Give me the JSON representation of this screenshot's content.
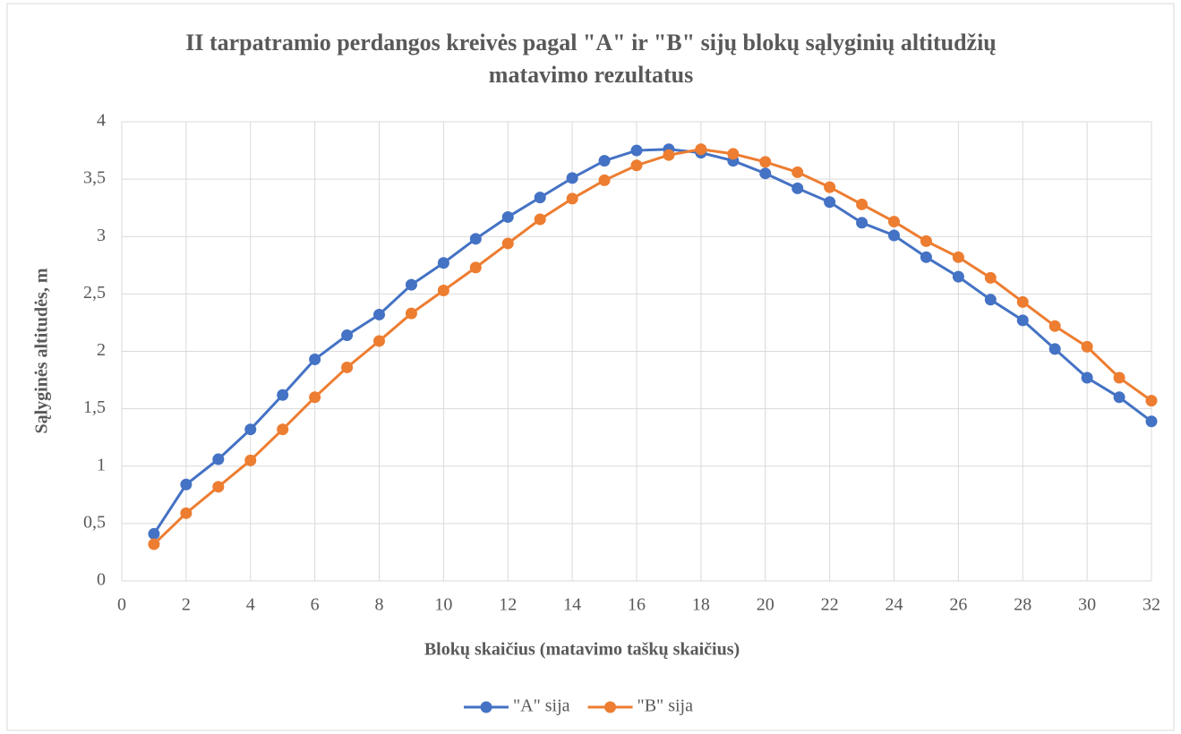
{
  "chart_data": {
    "type": "line",
    "title": "II tarpatramio perdangos kreivės pagal \"A\" ir \"B\" sijų blokų sąlyginių altitudžių matavimo rezultatus",
    "xlabel": "Blokų skaičius (matavimo taškų skaičius)",
    "ylabel": "Sąlyginės altitudės, m",
    "x": [
      1,
      2,
      3,
      4,
      5,
      6,
      7,
      8,
      9,
      10,
      11,
      12,
      13,
      14,
      15,
      16,
      17,
      18,
      19,
      20,
      21,
      22,
      23,
      24,
      25,
      26,
      27,
      28,
      29,
      30,
      31,
      32
    ],
    "series": [
      {
        "name": "\"A\" sija",
        "color": "#4472c4",
        "values": [
          0.41,
          0.84,
          1.06,
          1.32,
          1.62,
          1.93,
          2.14,
          2.32,
          2.58,
          2.77,
          2.98,
          3.17,
          3.34,
          3.51,
          3.66,
          3.75,
          3.76,
          3.73,
          3.66,
          3.55,
          3.42,
          3.3,
          3.12,
          3.01,
          2.82,
          2.65,
          2.45,
          2.27,
          2.02,
          1.77,
          1.6,
          1.39
        ]
      },
      {
        "name": "\"B\" sija",
        "color": "#ed7d31",
        "values": [
          0.32,
          0.59,
          0.82,
          1.05,
          1.32,
          1.6,
          1.86,
          2.09,
          2.33,
          2.53,
          2.73,
          2.94,
          3.15,
          3.33,
          3.49,
          3.62,
          3.71,
          3.76,
          3.72,
          3.65,
          3.56,
          3.43,
          3.28,
          3.13,
          2.96,
          2.82,
          2.64,
          2.43,
          2.22,
          2.04,
          1.77,
          1.57
        ]
      }
    ],
    "xlim": [
      0,
      32
    ],
    "xticks": [
      0,
      2,
      4,
      6,
      8,
      10,
      12,
      14,
      16,
      18,
      20,
      22,
      24,
      26,
      28,
      30,
      32
    ],
    "ylim": [
      0,
      4
    ],
    "yticks": [
      0,
      {
        "value": 0.5,
        "label": "0,5"
      },
      1,
      {
        "value": 1.5,
        "label": "1,5"
      },
      2,
      {
        "value": 2.5,
        "label": "2,5"
      },
      3,
      {
        "value": 3.5,
        "label": "3,5"
      },
      4
    ],
    "grid": true,
    "legend": "bottom"
  }
}
